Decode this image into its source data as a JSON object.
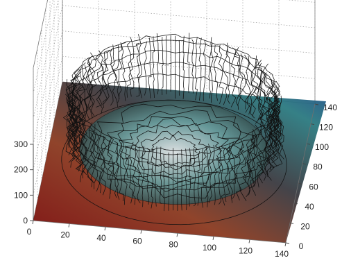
{
  "chart_data": {
    "type": "surface",
    "title": "",
    "xlabel": "",
    "ylabel": "",
    "zlabel": "",
    "x_ticks": [
      "0",
      "20",
      "40",
      "60",
      "80",
      "100",
      "120",
      "140"
    ],
    "y_ticks": [
      "0",
      "20",
      "40",
      "60",
      "80",
      "100",
      "120",
      "140"
    ],
    "z_ticks": [
      "0",
      "100",
      "200",
      "300"
    ],
    "xlim": [
      0,
      140
    ],
    "ylim": [
      0,
      140
    ],
    "zlim": [
      0,
      300
    ],
    "grid": true,
    "surface": {
      "description_shape": "annular wall",
      "center": [
        70,
        70
      ],
      "inner_floor_height": 40,
      "wall_height": 270,
      "rim_height": 250,
      "wall_inner_radius": 52,
      "wall_outer_radius": 62
    },
    "colors": {
      "wire": "#111111",
      "ground_low": "#7a0a0a",
      "ground_mid": "#b08a40",
      "ground_far": "#2b9a8a",
      "rim": "#8a2a1a"
    }
  }
}
